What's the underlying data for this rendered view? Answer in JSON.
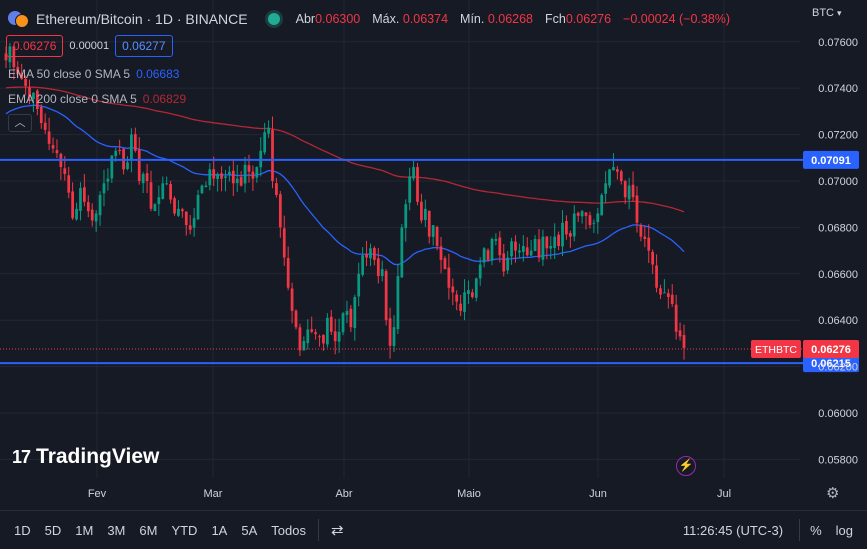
{
  "header": {
    "title": "Ethereum/Bitcoin · 1D · BINANCE",
    "ohlc": [
      {
        "label": "Abr",
        "value": "0.06300"
      },
      {
        "label": "Máx.",
        "value": "0.06374"
      },
      {
        "label": "Mín.",
        "value": "0.06268"
      },
      {
        "label": "Fch",
        "value": "0.06276"
      },
      {
        "label": "",
        "value": "−0.00024 (−0.38%)"
      }
    ],
    "sell_price": "0.06276",
    "spread": "0.00001",
    "buy_price": "0.06277",
    "currency": "BTC"
  },
  "indicators": [
    {
      "label": "EMA 50 close 0 SMA 5",
      "value": "0.06683",
      "color": "#2962ff"
    },
    {
      "label": "EMA 200 close 0 SMA 5",
      "value": "0.06829",
      "color": "#b22833"
    }
  ],
  "collapse_icon": "chevron-up-icon",
  "watermark": {
    "logo": "17",
    "text": "TradingView"
  },
  "toolbar": {
    "timeframes": [
      "1D",
      "5D",
      "1M",
      "3M",
      "6M",
      "YTD",
      "1A",
      "5A",
      "Todos"
    ],
    "clock": "11:26:45 (UTC-3)",
    "percent_label": "%",
    "log_label": "log"
  },
  "chart_data": {
    "type": "candlestick",
    "symbol": "ETHBTC",
    "title": "Ethereum/Bitcoin · 1D · BINANCE",
    "x_tick_labels": [
      "Fev",
      "Mar",
      "Abr",
      "Maio",
      "Jun",
      "Jul"
    ],
    "y_ticks": [
      "0.07600",
      "0.07400",
      "0.07200",
      "0.07000",
      "0.06800",
      "0.06600",
      "0.06400",
      "0.06200",
      "0.06000",
      "0.05800"
    ],
    "ylim": [
      0.0572,
      0.0778
    ],
    "horizontal_lines": [
      {
        "value": 0.07091,
        "label": "0.07091",
        "color": "#2962ff"
      },
      {
        "value": 0.06215,
        "label": "0.06215",
        "color": "#2962ff"
      }
    ],
    "last_price": {
      "value": 0.06276,
      "label": "0.06276",
      "symbol_label": "ETHBTC",
      "color": "#f23645"
    },
    "closes": [
      0.0752,
      0.0758,
      0.0749,
      0.0746,
      0.0744,
      0.0741,
      0.0736,
      0.0738,
      0.0731,
      0.0725,
      0.0722,
      0.0716,
      0.0714,
      0.0712,
      0.0706,
      0.0703,
      0.0695,
      0.0684,
      0.0688,
      0.0697,
      0.0691,
      0.0687,
      0.0683,
      0.0686,
      0.0694,
      0.0699,
      0.0701,
      0.0711,
      0.0713,
      0.0713,
      0.0705,
      0.0708,
      0.072,
      0.0713,
      0.07,
      0.0703,
      0.07,
      0.0688,
      0.069,
      0.0693,
      0.0699,
      0.0699,
      0.0692,
      0.0686,
      0.0688,
      0.0687,
      0.0681,
      0.0679,
      0.0684,
      0.0694,
      0.0698,
      0.0698,
      0.0705,
      0.0701,
      0.0703,
      0.0701,
      0.0702,
      0.0704,
      0.0699,
      0.0701,
      0.0698,
      0.0707,
      0.0704,
      0.0701,
      0.0706,
      0.0713,
      0.0721,
      0.0723,
      0.07,
      0.0694,
      0.068,
      0.0667,
      0.0654,
      0.0644,
      0.0637,
      0.0627,
      0.0631,
      0.0636,
      0.0635,
      0.0634,
      0.0633,
      0.063,
      0.0641,
      0.0635,
      0.0631,
      0.0635,
      0.0643,
      0.0644,
      0.0637,
      0.065,
      0.066,
      0.0668,
      0.0667,
      0.0671,
      0.0666,
      0.0659,
      0.0662,
      0.064,
      0.0629,
      0.0637,
      0.0659,
      0.068,
      0.069,
      0.0702,
      0.0706,
      0.0691,
      0.0683,
      0.0688,
      0.0676,
      0.0681,
      0.0672,
      0.0666,
      0.0662,
      0.0654,
      0.0652,
      0.0648,
      0.0644,
      0.0652,
      0.0653,
      0.065,
      0.0658,
      0.0664,
      0.0671,
      0.0666,
      0.0675,
      0.0675,
      0.0668,
      0.0661,
      0.0667,
      0.0674,
      0.067,
      0.067,
      0.0672,
      0.0668,
      0.067,
      0.0675,
      0.0667,
      0.0676,
      0.0671,
      0.0672,
      0.0676,
      0.0672,
      0.0682,
      0.0677,
      0.0676,
      0.0686,
      0.0685,
      0.0687,
      0.0685,
      0.0681,
      0.0682,
      0.0686,
      0.0694,
      0.0699,
      0.0705,
      0.0706,
      0.0704,
      0.07,
      0.0693,
      0.0698,
      0.0693,
      0.0682,
      0.0676,
      0.0675,
      0.067,
      0.0664,
      0.0654,
      0.0651,
      0.0652,
      0.065,
      0.0647,
      0.0635,
      0.0633,
      0.0628
    ]
  }
}
